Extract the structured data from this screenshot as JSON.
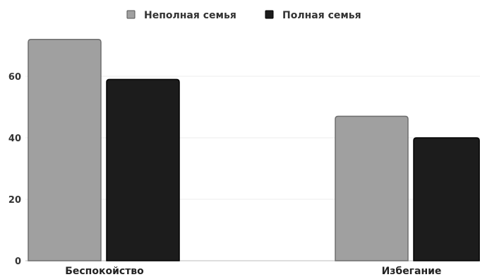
{
  "chart_data": {
    "type": "bar",
    "categories": [
      "Беспокойство",
      "Избегание"
    ],
    "series": [
      {
        "name": "Неполная семья",
        "values": [
          72,
          47
        ],
        "color": "#a0a0a0"
      },
      {
        "name": "Полная семья",
        "values": [
          59,
          40
        ],
        "color": "#1c1c1c"
      }
    ],
    "ylim": [
      0,
      75
    ],
    "yticks": [
      0,
      20,
      40,
      60
    ],
    "legend_position": "top-center",
    "grid": true
  }
}
